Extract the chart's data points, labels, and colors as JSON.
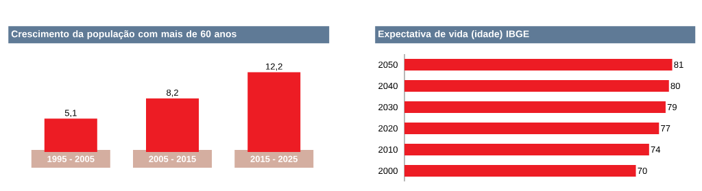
{
  "chart_data": [
    {
      "type": "bar",
      "title": "Crescimento da população com mais de 60 anos",
      "categories": [
        "1995 - 2005",
        "2005 - 2015",
        "2015 - 2025"
      ],
      "values": [
        5.1,
        8.2,
        12.2
      ],
      "value_labels": [
        "5,1",
        "8,2",
        "12,2"
      ],
      "color": "#ed1c24"
    },
    {
      "type": "bar",
      "orientation": "horizontal",
      "title": "Expectativa de vida (idade) IBGE",
      "categories": [
        "2050",
        "2040",
        "2030",
        "2020",
        "2010",
        "2000"
      ],
      "values": [
        81,
        80,
        79,
        77,
        74,
        70
      ],
      "value_labels": [
        "81",
        "80",
        "79",
        "77",
        "74",
        "70"
      ],
      "color": "#ed1c24"
    }
  ]
}
